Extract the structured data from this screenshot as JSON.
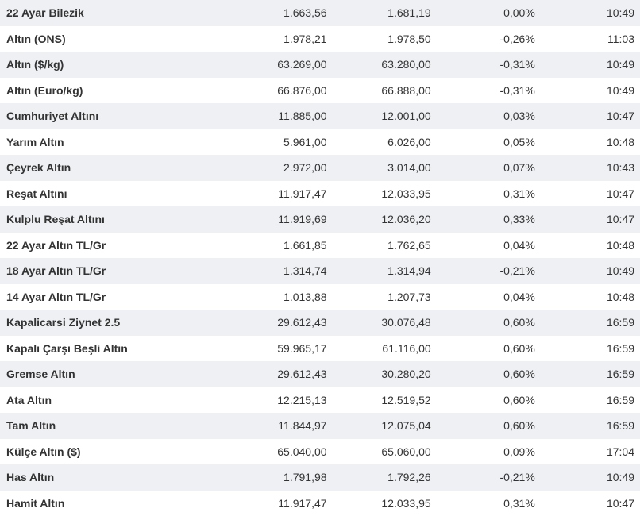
{
  "rows": [
    {
      "name": "22 Ayar Bilezik",
      "buy": "1.663,56",
      "sell": "1.681,19",
      "change": "0,00%",
      "time": "10:49"
    },
    {
      "name": "Altın (ONS)",
      "buy": "1.978,21",
      "sell": "1.978,50",
      "change": "-0,26%",
      "time": "11:03"
    },
    {
      "name": "Altın ($/kg)",
      "buy": "63.269,00",
      "sell": "63.280,00",
      "change": "-0,31%",
      "time": "10:49"
    },
    {
      "name": "Altın (Euro/kg)",
      "buy": "66.876,00",
      "sell": "66.888,00",
      "change": "-0,31%",
      "time": "10:49"
    },
    {
      "name": "Cumhuriyet Altını",
      "buy": "11.885,00",
      "sell": "12.001,00",
      "change": "0,03%",
      "time": "10:47"
    },
    {
      "name": "Yarım Altın",
      "buy": "5.961,00",
      "sell": "6.026,00",
      "change": "0,05%",
      "time": "10:48"
    },
    {
      "name": "Çeyrek Altın",
      "buy": "2.972,00",
      "sell": "3.014,00",
      "change": "0,07%",
      "time": "10:43"
    },
    {
      "name": "Reşat Altını",
      "buy": "11.917,47",
      "sell": "12.033,95",
      "change": "0,31%",
      "time": "10:47"
    },
    {
      "name": "Kulplu Reşat Altını",
      "buy": "11.919,69",
      "sell": "12.036,20",
      "change": "0,33%",
      "time": "10:47"
    },
    {
      "name": "22 Ayar Altın TL/Gr",
      "buy": "1.661,85",
      "sell": "1.762,65",
      "change": "0,04%",
      "time": "10:48"
    },
    {
      "name": "18 Ayar Altın TL/Gr",
      "buy": "1.314,74",
      "sell": "1.314,94",
      "change": "-0,21%",
      "time": "10:49"
    },
    {
      "name": "14 Ayar Altın TL/Gr",
      "buy": "1.013,88",
      "sell": "1.207,73",
      "change": "0,04%",
      "time": "10:48"
    },
    {
      "name": "Kapalicarsi Ziynet 2.5",
      "buy": "29.612,43",
      "sell": "30.076,48",
      "change": "0,60%",
      "time": "16:59"
    },
    {
      "name": "Kapalı Çarşı Beşli Altın",
      "buy": "59.965,17",
      "sell": "61.116,00",
      "change": "0,60%",
      "time": "16:59"
    },
    {
      "name": "Gremse Altın",
      "buy": "29.612,43",
      "sell": "30.280,20",
      "change": "0,60%",
      "time": "16:59"
    },
    {
      "name": "Ata Altın",
      "buy": "12.215,13",
      "sell": "12.519,52",
      "change": "0,60%",
      "time": "16:59"
    },
    {
      "name": "Tam Altın",
      "buy": "11.844,97",
      "sell": "12.075,04",
      "change": "0,60%",
      "time": "16:59"
    },
    {
      "name": "Külçe Altın ($)",
      "buy": "65.040,00",
      "sell": "65.060,00",
      "change": "0,09%",
      "time": "17:04"
    },
    {
      "name": "Has Altın",
      "buy": "1.791,98",
      "sell": "1.792,26",
      "change": "-0,21%",
      "time": "10:49"
    },
    {
      "name": "Hamit Altın",
      "buy": "11.917,47",
      "sell": "12.033,95",
      "change": "0,31%",
      "time": "10:47"
    }
  ]
}
